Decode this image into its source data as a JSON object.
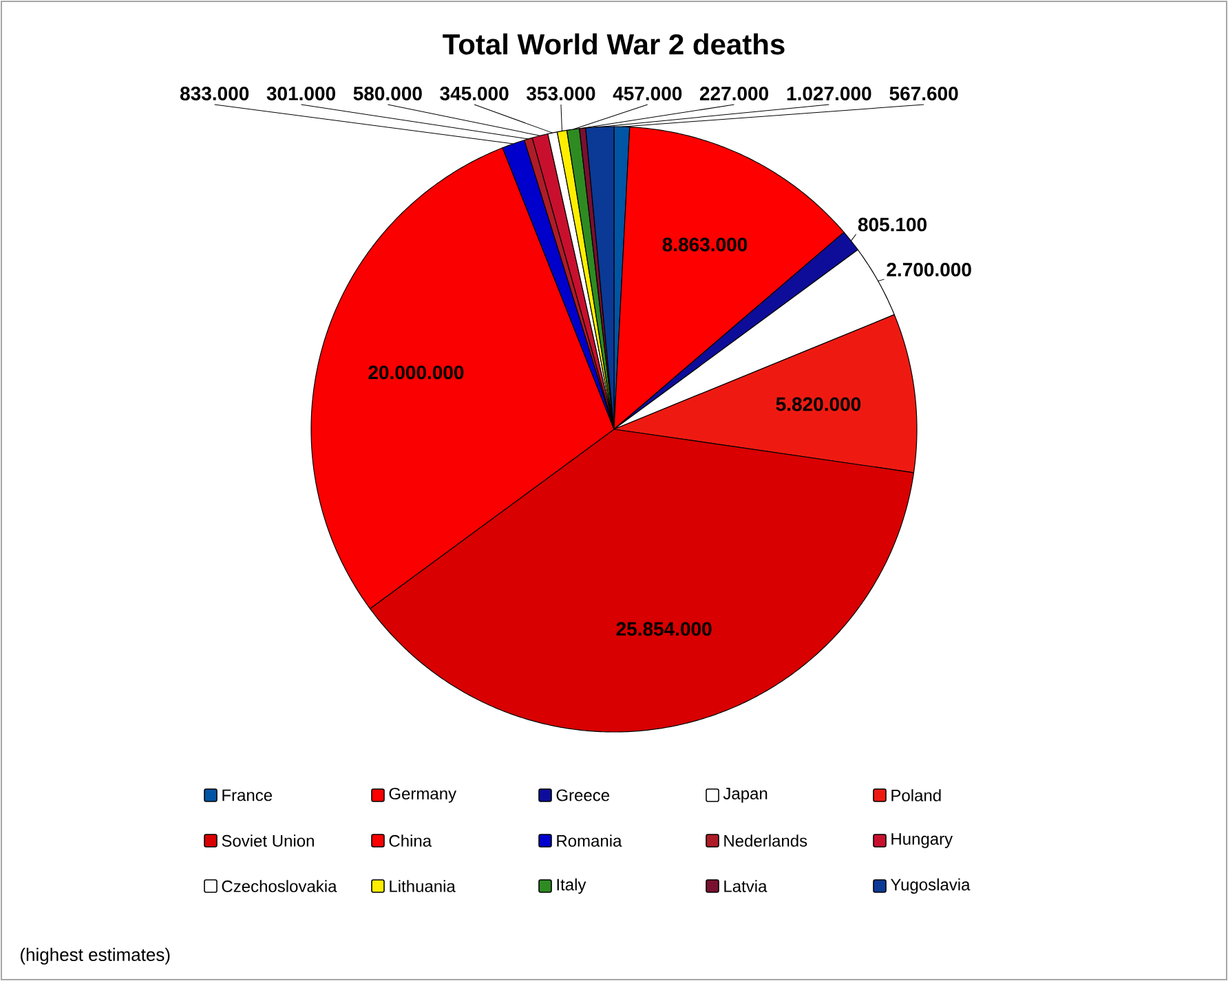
{
  "chart_data": {
    "type": "pie",
    "title": "Total World War 2 deaths",
    "categories": [
      "France",
      "Germany",
      "Greece",
      "Japan",
      "Poland",
      "Soviet Union",
      "China",
      "Romania",
      "Nederlands",
      "Hungary",
      "Czechoslovakia",
      "Lithuania",
      "Italy",
      "Latvia",
      "Yugoslavia"
    ],
    "values": [
      567600,
      8863000,
      805100,
      2700000,
      5820000,
      25854000,
      20000000,
      833000,
      301000,
      580000,
      345000,
      353000,
      457000,
      227000,
      1027000
    ],
    "colors": [
      "#0055a4",
      "#ff0000",
      "#0d0d9a",
      "#ffffff",
      "#ee1a12",
      "#d80000",
      "#fa0000",
      "#0000cc",
      "#ae1c28",
      "#c8102e",
      "#ffffff",
      "#ffee00",
      "#2e8b22",
      "#7a1030",
      "#0a3a96"
    ],
    "value_labels": [
      "567.600",
      "8.863.000",
      "805.100",
      "2.700.000",
      "5.820.000",
      "25.854.000",
      "20.000.000",
      "833.000",
      "301.000",
      "580.000",
      "345.000",
      "353.000",
      "457.000",
      "227.000",
      "1.027.000"
    ],
    "legend": "bottom",
    "annotations": [
      "(highest estimates)"
    ]
  }
}
